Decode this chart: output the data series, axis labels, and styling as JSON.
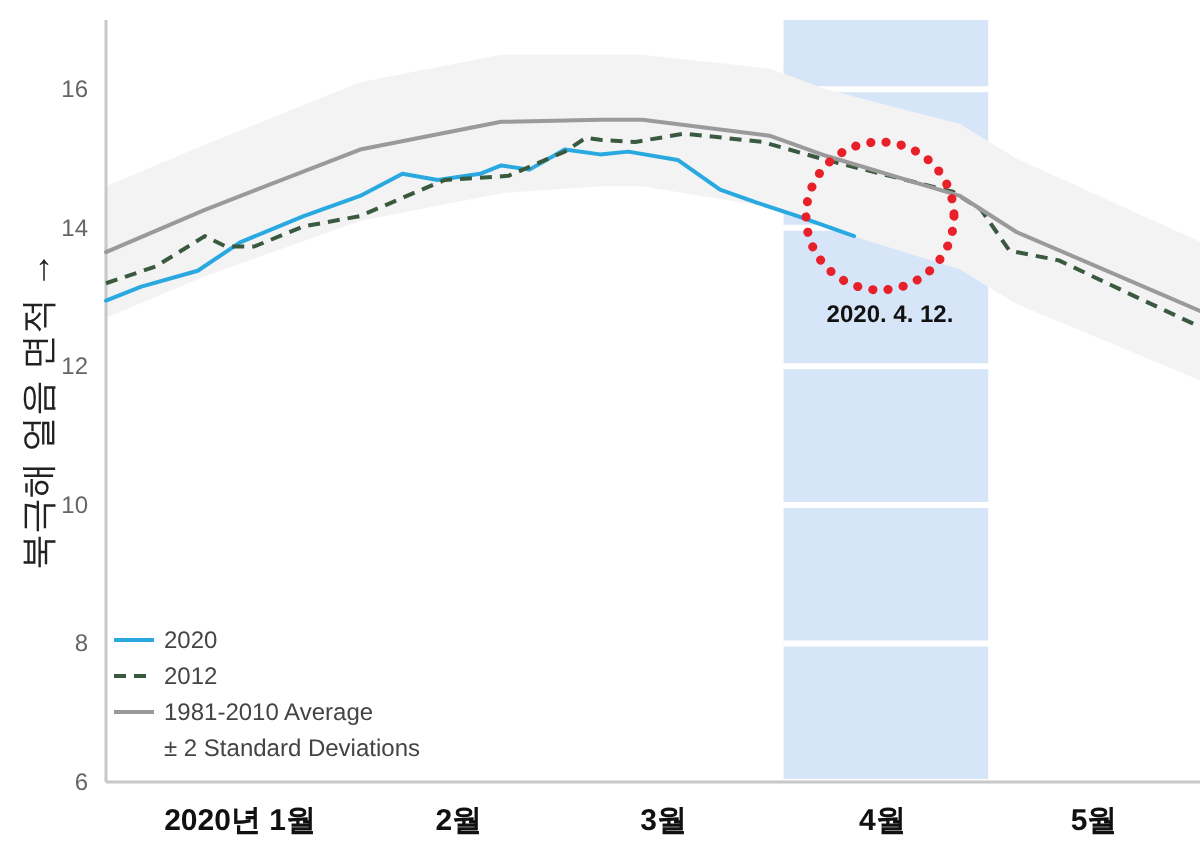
{
  "chart_data": {
    "type": "line",
    "ylabel": "북극해 얼음 면적 →",
    "xlim": [
      "2019-12-27",
      "2020-05-30"
    ],
    "xticks": [
      {
        "value": "2020-01-15",
        "label": "2020년 1월"
      },
      {
        "value": "2020-02-15",
        "label": "2월"
      },
      {
        "value": "2020-03-15",
        "label": "3월"
      },
      {
        "value": "2020-04-15",
        "label": "4월"
      },
      {
        "value": "2020-05-15",
        "label": "5월"
      }
    ],
    "ylim": [
      6,
      17
    ],
    "yticks": [
      6,
      8,
      10,
      12,
      14,
      16
    ],
    "grid": "y",
    "legend": "bottom left",
    "bands": [
      {
        "axis": "x",
        "from": "2020-04-01",
        "to": "2020-04-30",
        "color": "#d6e6f8"
      }
    ],
    "series": [
      {
        "name": "2020",
        "color": "#29a9e0",
        "line_style": "solid",
        "x": [
          "2019-12-27",
          "2020-01-01",
          "2020-01-09",
          "2020-01-15",
          "2020-01-24",
          "2020-02-01",
          "2020-02-07",
          "2020-02-12",
          "2020-02-18",
          "2020-02-21",
          "2020-02-25",
          "2020-03-01",
          "2020-03-06",
          "2020-03-10",
          "2020-03-17",
          "2020-03-23",
          "2020-03-28",
          "2020-04-03",
          "2020-04-11"
        ],
        "values": [
          12.95,
          13.15,
          13.38,
          13.79,
          14.17,
          14.46,
          14.78,
          14.69,
          14.78,
          14.9,
          14.84,
          15.13,
          15.06,
          15.1,
          14.98,
          14.55,
          14.37,
          14.17,
          13.88
        ]
      },
      {
        "name": "2012",
        "color": "#3a5a40",
        "line_style": "dashed",
        "x": [
          "2019-12-27",
          "2020-01-03",
          "2020-01-10",
          "2020-01-13",
          "2020-01-17",
          "2020-01-24",
          "2020-02-01",
          "2020-02-09",
          "2020-02-13",
          "2020-02-22",
          "2020-03-01",
          "2020-03-04",
          "2020-03-06",
          "2020-03-11",
          "2020-03-18",
          "2020-03-29",
          "2020-04-07",
          "2020-04-16",
          "2020-04-25",
          "2020-04-29",
          "2020-05-03",
          "2020-05-10",
          "2020-05-21",
          "2020-05-30"
        ],
        "values": [
          13.2,
          13.44,
          13.88,
          13.73,
          13.73,
          14.02,
          14.17,
          14.52,
          14.69,
          14.75,
          15.1,
          15.3,
          15.27,
          15.24,
          15.36,
          15.24,
          14.98,
          14.75,
          14.52,
          14.26,
          13.67,
          13.53,
          13.0,
          12.57
        ]
      },
      {
        "name": "1981-2010 Average",
        "color": "#9a9a9a",
        "line_style": "solid",
        "x": [
          "2019-12-27",
          "2020-01-10",
          "2020-02-01",
          "2020-02-21",
          "2020-03-06",
          "2020-03-12",
          "2020-03-30",
          "2020-04-07",
          "2020-04-26",
          "2020-05-04",
          "2020-05-30"
        ],
        "values": [
          13.65,
          14.26,
          15.13,
          15.53,
          15.56,
          15.56,
          15.33,
          15.04,
          14.46,
          13.94,
          12.8
        ],
        "lower": [
          12.7,
          13.3,
          14.1,
          14.5,
          14.6,
          14.6,
          14.3,
          14.0,
          13.4,
          12.9,
          11.8
        ],
        "upper": [
          14.6,
          15.2,
          16.1,
          16.5,
          16.5,
          16.5,
          16.3,
          16.0,
          15.5,
          15.0,
          13.8
        ]
      }
    ],
    "annotations": [
      "± 2 Standard Deviations",
      "2020. 4. 12."
    ]
  }
}
